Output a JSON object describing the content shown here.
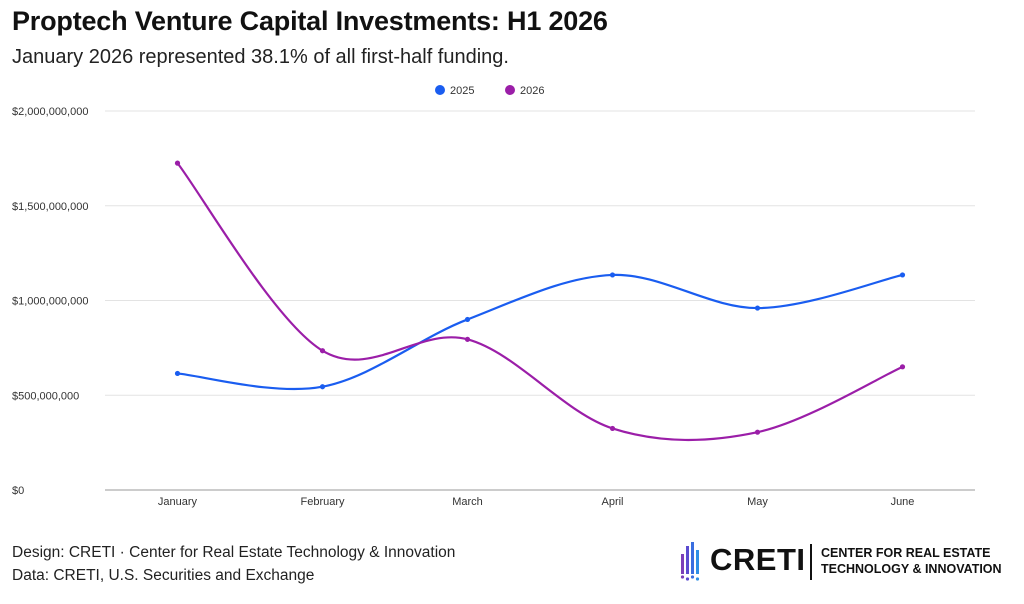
{
  "title": "Proptech Venture Capital Investments: H1 2026",
  "subtitle": "January 2026 represented 38.1% of all first-half funding.",
  "chart_data": {
    "type": "line",
    "categories": [
      "January",
      "February",
      "March",
      "April",
      "May",
      "June"
    ],
    "series": [
      {
        "name": "2025",
        "color": "#1a5df0",
        "values": [
          615000000,
          545000000,
          900000000,
          1135000000,
          960000000,
          1135000000
        ]
      },
      {
        "name": "2026",
        "color": "#9b1ea8",
        "values": [
          1725000000,
          735000000,
          795000000,
          325000000,
          305000000,
          650000000
        ]
      }
    ],
    "ylim": [
      0,
      2000000000
    ],
    "yticks": [
      0,
      500000000,
      1000000000,
      1500000000,
      2000000000
    ],
    "ytick_labels": [
      "$0",
      "$500,000,000",
      "$1,000,000,000",
      "$1,500,000,000",
      "$2,000,000,000"
    ],
    "grid": true,
    "legend_position": "top-center",
    "smooth": true
  },
  "footer": {
    "design": "Design: CRETI · Center for Real Estate Technology & Innovation",
    "source": "Data: CRETI, U.S. Securities and Exchange"
  },
  "logo": {
    "wordmark": "CRETI",
    "line1": "CENTER FOR REAL ESTATE",
    "line2": "TECHNOLOGY & INNOVATION",
    "icon": "building-bars-icon"
  }
}
